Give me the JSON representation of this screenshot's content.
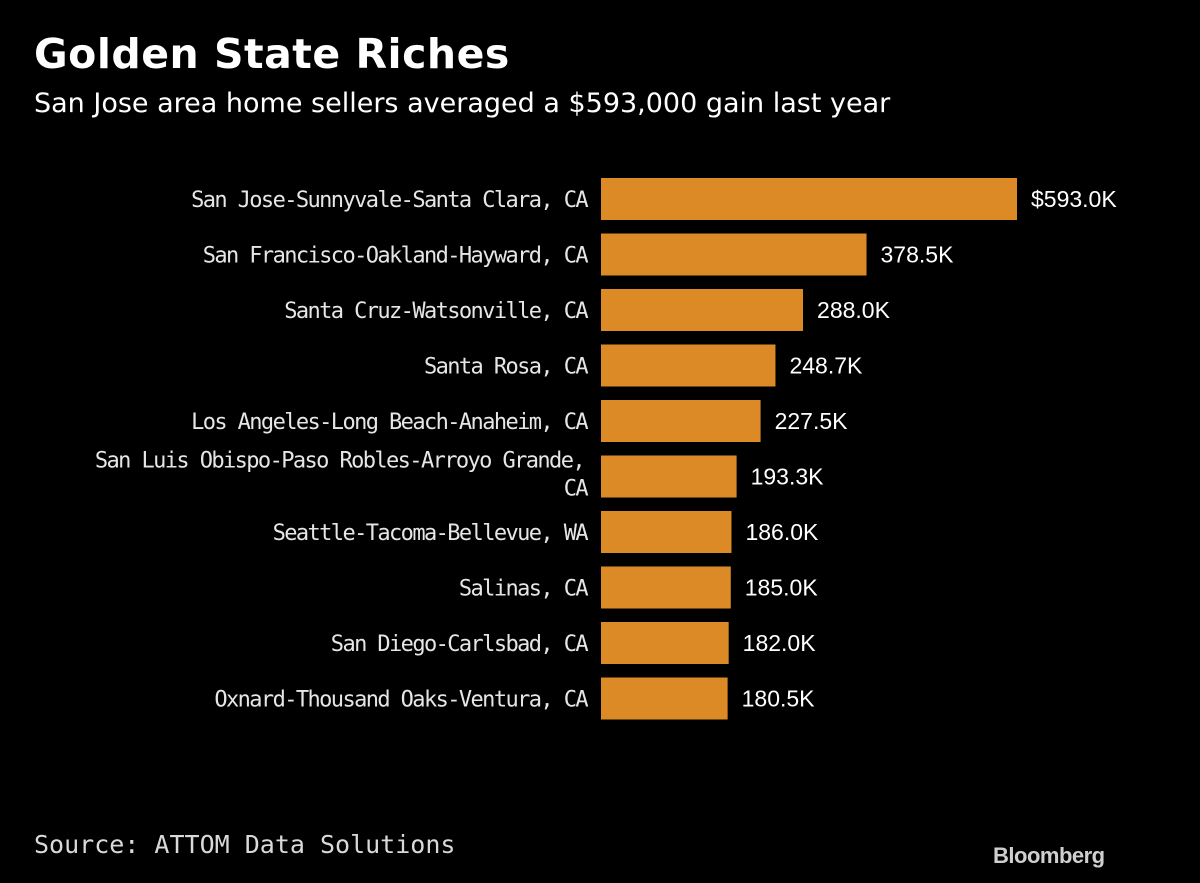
{
  "chart_data": {
    "type": "bar",
    "orientation": "horizontal",
    "title": "Golden State Riches",
    "subtitle": "San Jose area home sellers averaged a $593,000 gain last year",
    "categories": [
      "San Jose-Sunnyvale-Santa Clara, CA",
      "San Francisco-Oakland-Hayward, CA",
      "Santa Cruz-Watsonville, CA",
      "Santa Rosa, CA",
      "Los Angeles-Long Beach-Anaheim, CA",
      "San Luis Obispo-Paso Robles-Arroyo Grande, CA",
      "Seattle-Tacoma-Bellevue, WA",
      "Salinas, CA",
      "San Diego-Carlsbad, CA",
      "Oxnard-Thousand Oaks-Ventura, CA"
    ],
    "category_lines": [
      [
        "San Jose-Sunnyvale-Santa Clara, CA"
      ],
      [
        "San Francisco-Oakland-Hayward, CA"
      ],
      [
        "Santa Cruz-Watsonville, CA"
      ],
      [
        "Santa Rosa, CA"
      ],
      [
        "Los Angeles-Long Beach-Anaheim, CA"
      ],
      [
        "San Luis Obispo-Paso Robles-Arroyo Grande,",
        "CA"
      ],
      [
        "Seattle-Tacoma-Bellevue, WA"
      ],
      [
        "Salinas, CA"
      ],
      [
        "San Diego-Carlsbad, CA"
      ],
      [
        "Oxnard-Thousand Oaks-Ventura, CA"
      ]
    ],
    "values": [
      593.0,
      378.5,
      288.0,
      248.7,
      227.5,
      193.3,
      186.0,
      185.0,
      182.0,
      180.5
    ],
    "value_labels": [
      "$593.0K",
      "378.5K",
      "288.0K",
      "248.7K",
      "227.5K",
      "193.3K",
      "186.0K",
      "185.0K",
      "182.0K",
      "180.5K"
    ],
    "xlim": [
      0,
      593.0
    ],
    "grid": false,
    "legend": "none",
    "bar_color": "#dc8a26"
  },
  "footer": {
    "source": "Source: ATTOM Data Solutions",
    "brand": "Bloomberg"
  }
}
